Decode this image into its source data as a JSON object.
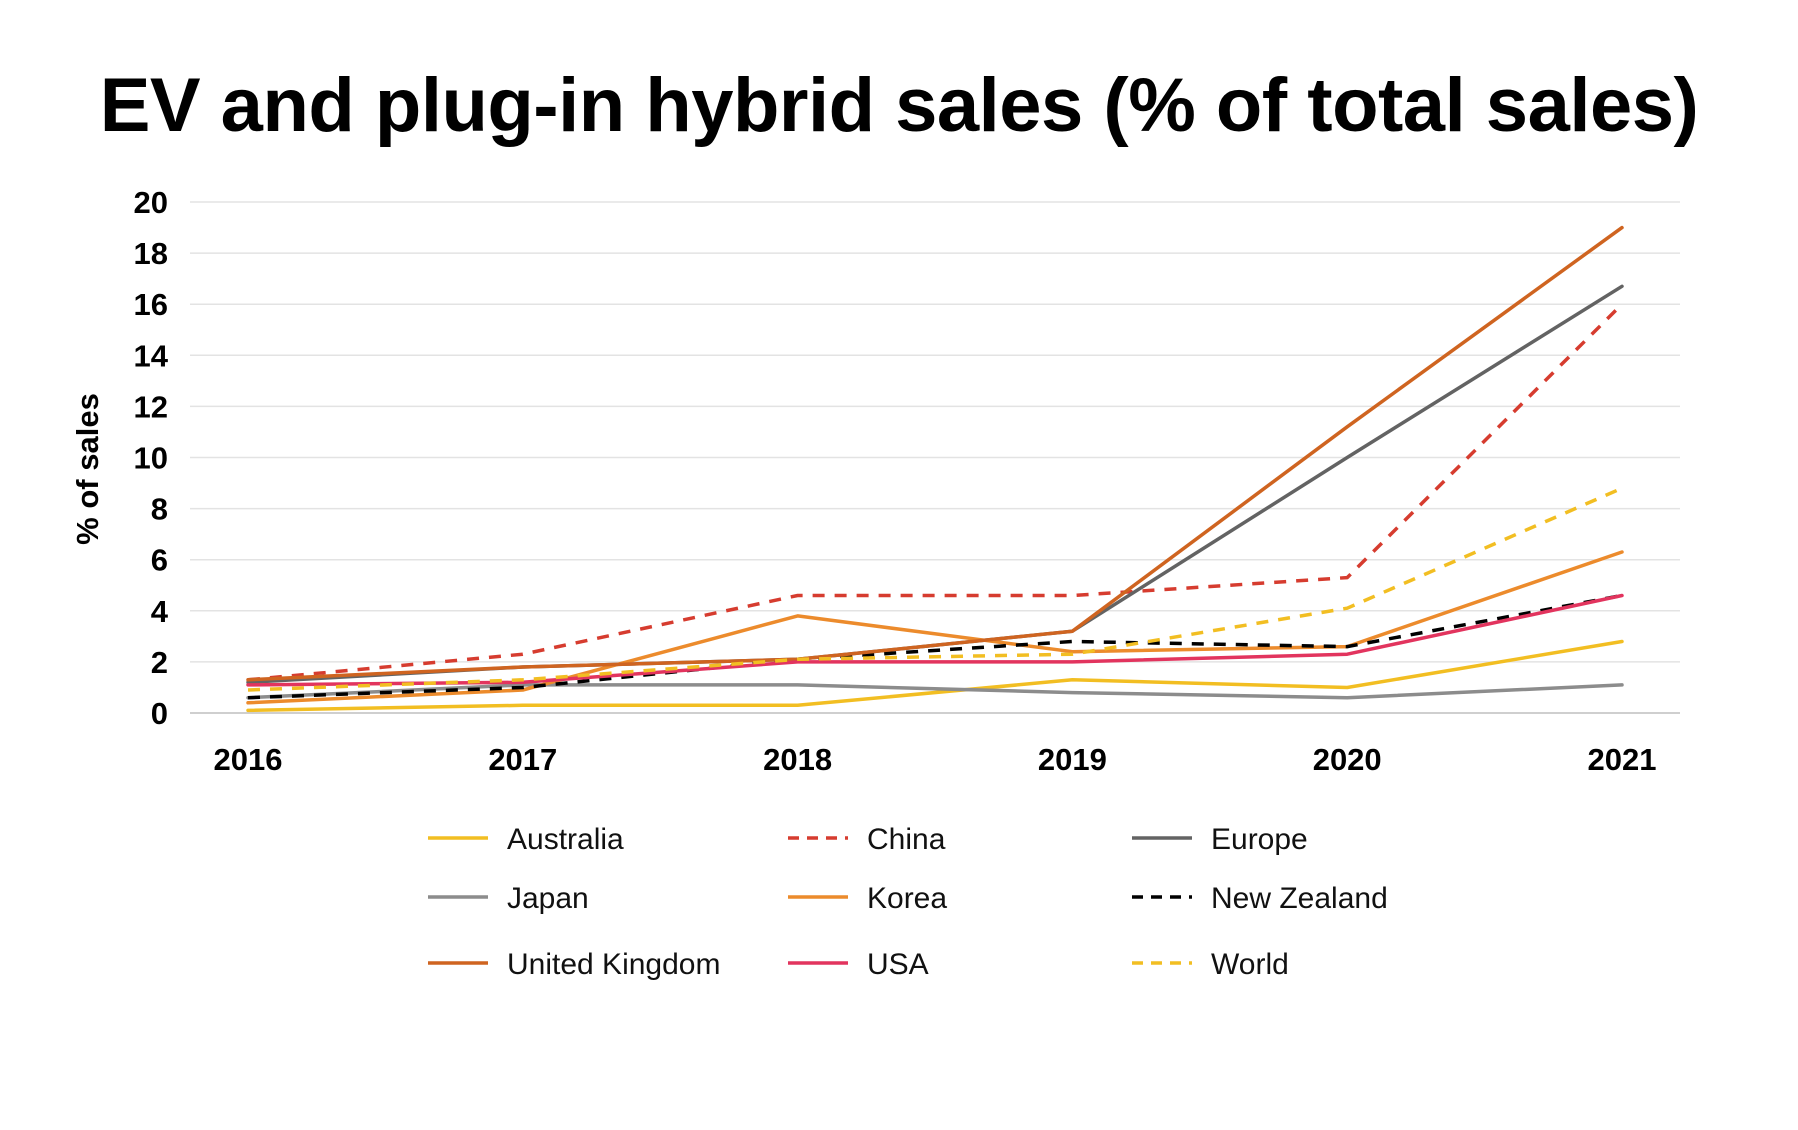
{
  "chart_data": {
    "type": "line",
    "title": "EV and plug-in hybrid sales (% of total sales)",
    "xlabel": "",
    "ylabel": "% of sales",
    "categories": [
      "2016",
      "2017",
      "2018",
      "2019",
      "2020",
      "2021"
    ],
    "ylim": [
      0,
      20
    ],
    "yticks": [
      "0",
      "2",
      "4",
      "6",
      "8",
      "10",
      "12",
      "14",
      "16",
      "18",
      "20"
    ],
    "grid": true,
    "legend_position": "bottom",
    "series": [
      {
        "name": "Australia",
        "color": "#f2be22",
        "dashed": false,
        "values": [
          0.1,
          0.3,
          0.3,
          1.3,
          1.0,
          2.8
        ]
      },
      {
        "name": "China",
        "color": "#d63c2f",
        "dashed": true,
        "values": [
          1.3,
          2.3,
          4.6,
          4.6,
          5.3,
          16.0
        ]
      },
      {
        "name": "Europe",
        "color": "#636363",
        "dashed": false,
        "values": [
          1.2,
          1.8,
          2.1,
          3.2,
          10.0,
          16.7
        ]
      },
      {
        "name": "Japan",
        "color": "#8c8c8c",
        "dashed": false,
        "values": [
          0.6,
          1.1,
          1.1,
          0.8,
          0.6,
          1.1
        ]
      },
      {
        "name": "Korea",
        "color": "#ec8b2c",
        "dashed": false,
        "values": [
          0.4,
          0.9,
          3.8,
          2.4,
          2.6,
          6.3
        ]
      },
      {
        "name": "New Zealand",
        "color": "#000000",
        "dashed": true,
        "values": [
          0.6,
          1.0,
          2.1,
          2.8,
          2.6,
          4.6
        ]
      },
      {
        "name": "United Kingdom",
        "color": "#cf6420",
        "dashed": false,
        "values": [
          1.3,
          1.8,
          2.1,
          3.2,
          11.2,
          19.0
        ]
      },
      {
        "name": "USA",
        "color": "#e2345e",
        "dashed": false,
        "values": [
          1.1,
          1.2,
          2.0,
          2.0,
          2.3,
          4.6
        ]
      },
      {
        "name": "World",
        "color": "#f2be22",
        "dashed": true,
        "values": [
          0.9,
          1.3,
          2.1,
          2.3,
          4.1,
          8.8
        ]
      }
    ]
  }
}
